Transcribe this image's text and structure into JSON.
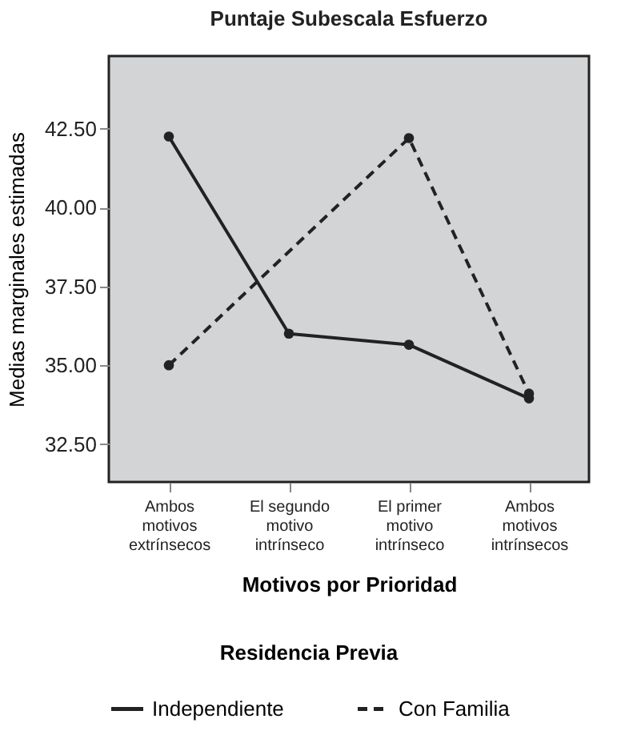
{
  "chart_data": {
    "type": "line",
    "title": "Puntaje Subescala Esfuerzo",
    "xlabel": "Motivos por Prioridad",
    "ylabel": "Medias marginales estimadas",
    "legend_title": "Residencia Previa",
    "categories": [
      "Ambos\nmotivos\nextrínsecos",
      "El segundo\nmotivo\nintrínseco",
      "El primer\nmotivo\nintrínseco",
      "Ambos\nmotivos\nintrínsecos"
    ],
    "series": [
      {
        "name": "Independiente",
        "color": "#222222",
        "line_style": "solid",
        "values": [
          42.25,
          36.0,
          35.65,
          33.95
        ]
      },
      {
        "name": "Con Familia",
        "color": "#222222",
        "line_style": "dashed",
        "values": [
          35.0,
          null,
          42.2,
          34.1
        ]
      }
    ],
    "ylim": [
      31.3,
      44.8
    ],
    "yticks": [
      {
        "value": 32.5,
        "label": "32.50"
      },
      {
        "value": 35,
        "label": "35.00"
      },
      {
        "value": 37.5,
        "label": "37.50"
      },
      {
        "value": 40,
        "label": "40.00"
      },
      {
        "value": 42.5,
        "label": "42.50"
      }
    ],
    "grid": false,
    "legend": "bottom",
    "marker": "circle"
  }
}
